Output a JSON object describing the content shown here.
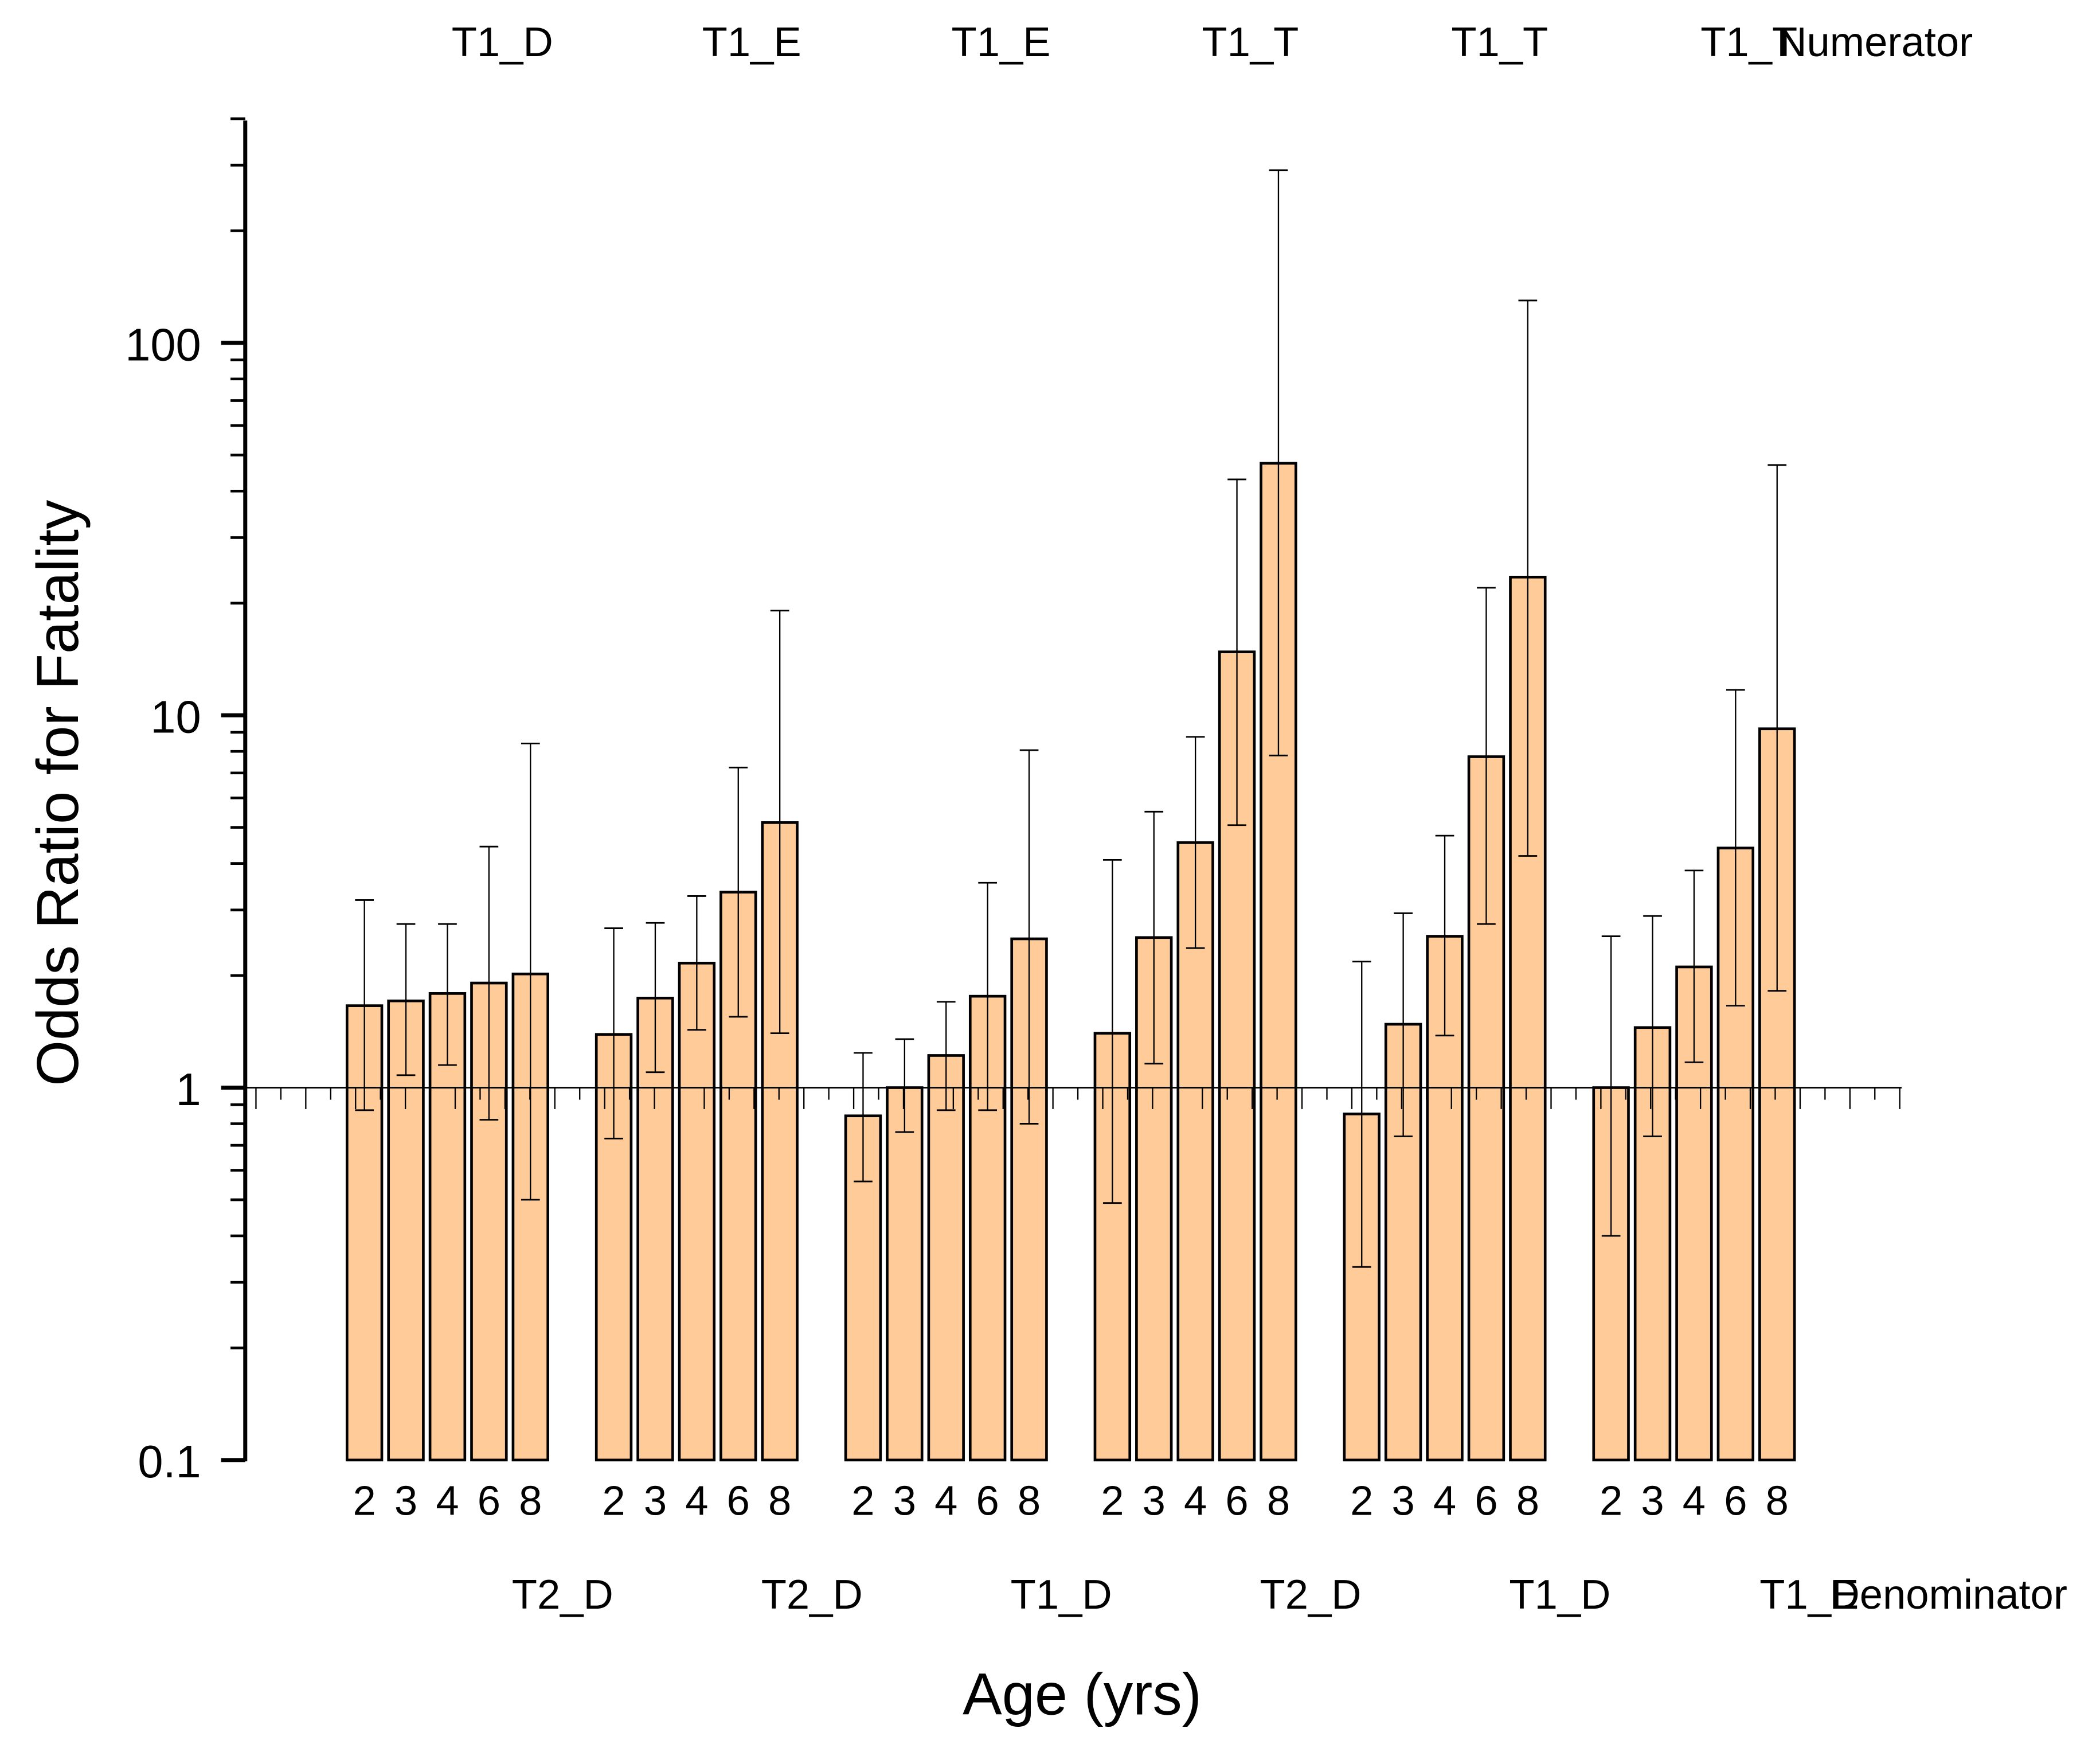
{
  "chart_data": {
    "type": "bar",
    "xlabel": "Age (yrs)",
    "ylabel": "Odds Ratio for Fatality",
    "yscale": "log",
    "ylim": [
      0.1,
      400
    ],
    "yticks": [
      "0.1",
      "1",
      "10",
      "100"
    ],
    "reference_line": 1,
    "grid": false,
    "bar_color": "#FFCC99",
    "numerator_title": "Numerator",
    "denominator_title": "Denominator",
    "categories": [
      "2",
      "3",
      "4",
      "6",
      "8"
    ],
    "groups": [
      {
        "numerator": "T1_D",
        "denominator": "T2_D",
        "values": [
          1.66,
          1.71,
          1.79,
          1.91,
          2.02
        ],
        "upper": [
          3.19,
          2.75,
          2.75,
          4.44,
          8.4
        ],
        "lower": [
          0.87,
          1.08,
          1.15,
          0.82,
          0.5
        ]
      },
      {
        "numerator": "T1_E",
        "denominator": "T2_D",
        "values": [
          1.39,
          1.74,
          2.16,
          3.35,
          5.15
        ],
        "upper": [
          2.68,
          2.77,
          3.27,
          7.24,
          19.1
        ],
        "lower": [
          0.73,
          1.1,
          1.43,
          1.55,
          1.4
        ]
      },
      {
        "numerator": "T1_E",
        "denominator": "T1_D",
        "values": [
          0.84,
          1.0,
          1.22,
          1.76,
          2.51
        ],
        "upper": [
          1.24,
          1.35,
          1.7,
          3.55,
          8.06
        ],
        "lower": [
          0.56,
          0.76,
          0.87,
          0.87,
          0.8
        ]
      },
      {
        "numerator": "T1_T",
        "denominator": "T2_D",
        "values": [
          1.4,
          2.53,
          4.55,
          14.8,
          47.5
        ],
        "upper": [
          4.09,
          5.51,
          8.75,
          43,
          291
        ],
        "lower": [
          0.49,
          1.16,
          2.37,
          5.07,
          7.8
        ]
      },
      {
        "numerator": "T1_T",
        "denominator": "T1_D",
        "values": [
          0.85,
          1.48,
          2.55,
          7.74,
          23.5
        ],
        "upper": [
          2.18,
          2.94,
          4.75,
          22,
          130
        ],
        "lower": [
          0.33,
          0.74,
          1.38,
          2.75,
          4.19
        ]
      },
      {
        "numerator": "T1_T",
        "denominator": "T1_E",
        "values": [
          1.0,
          1.45,
          2.11,
          4.4,
          9.2
        ],
        "upper": [
          2.55,
          2.89,
          3.83,
          11.7,
          47
        ],
        "lower": [
          0.4,
          0.74,
          1.17,
          1.66,
          1.82
        ]
      }
    ]
  }
}
